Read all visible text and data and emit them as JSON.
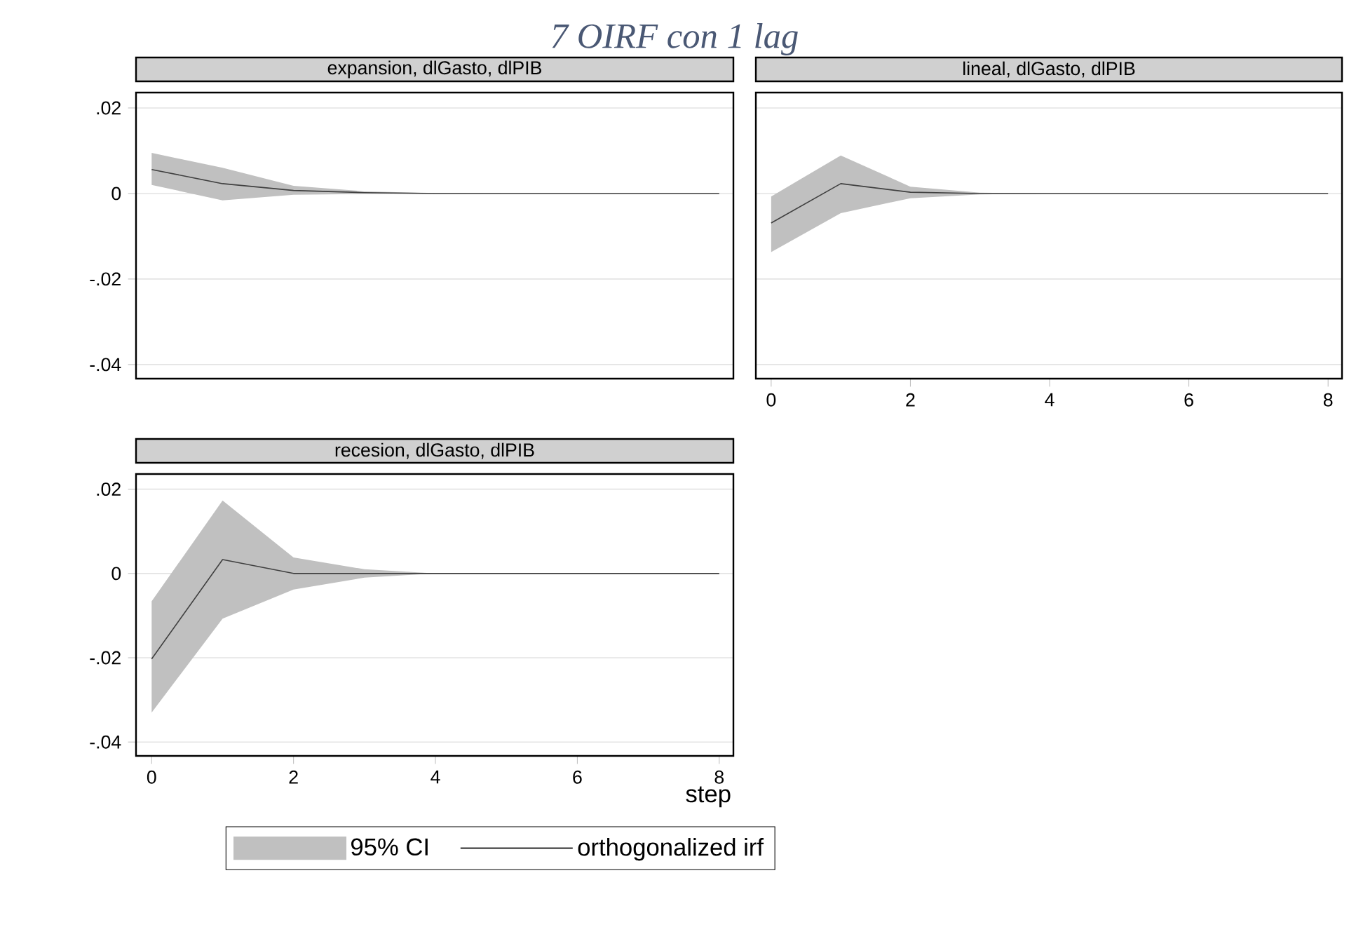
{
  "chart_data": [
    {
      "type": "line",
      "title": "expansion, dlGasto, dlPIB",
      "annotations": [
        "7 OIRF con 1 lag"
      ],
      "x": [
        0,
        1,
        2,
        3,
        4,
        5,
        6,
        7,
        8
      ],
      "series": [
        {
          "color": "#404040",
          "values": [
            0.0056,
            0.0023,
            0.0007,
            0.0002,
            0,
            0,
            0,
            0,
            0
          ],
          "lower": [
            0.002,
            -0.0016,
            -0.0003,
            -0.0001,
            0,
            0,
            0,
            0,
            0
          ],
          "upper": [
            0.0095,
            0.006,
            0.0018,
            0.0005,
            0.0001,
            0,
            0,
            0,
            0
          ]
        }
      ],
      "xlim": [
        -0.22,
        8.2
      ],
      "ylim": [
        -0.0433,
        0.0236
      ],
      "xticks": [
        0,
        2,
        4,
        6,
        8
      ],
      "yticks": [
        {
          "value": -0.04,
          "label": "-.04"
        },
        {
          "value": -0.02,
          "label": "-.02"
        },
        0,
        {
          "value": 0.02,
          "label": ".02"
        }
      ],
      "tick_labels": "y",
      "grid": "y",
      "legend": false
    },
    {
      "type": "line",
      "title": "lineal, dlGasto, dlPIB",
      "x": [
        0,
        1,
        2,
        3,
        4,
        5,
        6,
        7,
        8
      ],
      "series": [
        {
          "color": "#404040",
          "values": [
            -0.0069,
            0.0023,
            0.0003,
            0,
            0,
            0,
            0,
            0,
            0
          ],
          "lower": [
            -0.0137,
            -0.0046,
            -0.0011,
            -0.0002,
            0,
            0,
            0,
            0,
            0
          ],
          "upper": [
            -0.0007,
            0.0089,
            0.0016,
            0.0002,
            0,
            0,
            0,
            0,
            0
          ]
        }
      ],
      "xlim": [
        -0.22,
        8.2
      ],
      "ylim": [
        -0.0433,
        0.0236
      ],
      "xticks": [
        0,
        2,
        4,
        6,
        8
      ],
      "yticks": [
        -0.04,
        -0.02,
        0,
        0.02
      ],
      "tick_labels": "x",
      "grid": "y",
      "legend": false
    },
    {
      "type": "line",
      "title": "recesion, dlGasto, dlPIB",
      "xlabel": "step",
      "annotations": [
        "95% CI"
      ],
      "x": [
        0,
        1,
        2,
        3,
        4,
        5,
        6,
        7,
        8
      ],
      "series": [
        {
          "name": "orthogonalized irf",
          "color": "#404040",
          "values": [
            -0.0203,
            0.0033,
            0,
            0,
            0,
            0,
            0,
            0,
            0
          ],
          "lower": [
            -0.033,
            -0.0107,
            -0.0038,
            -0.001,
            0,
            0,
            0,
            0,
            0
          ],
          "upper": [
            -0.0066,
            0.0173,
            0.0038,
            0.001,
            0,
            0,
            0,
            0,
            0
          ]
        }
      ],
      "xlim": [
        -0.22,
        8.2
      ],
      "ylim": [
        -0.0433,
        0.0236
      ],
      "xticks": [
        0,
        2,
        4,
        6,
        8
      ],
      "yticks": [
        {
          "value": -0.04,
          "label": "-.04"
        },
        {
          "value": -0.02,
          "label": "-.02"
        },
        0,
        {
          "value": 0.02,
          "label": ".02"
        }
      ],
      "grid": "y",
      "legend": "bottom"
    }
  ]
}
